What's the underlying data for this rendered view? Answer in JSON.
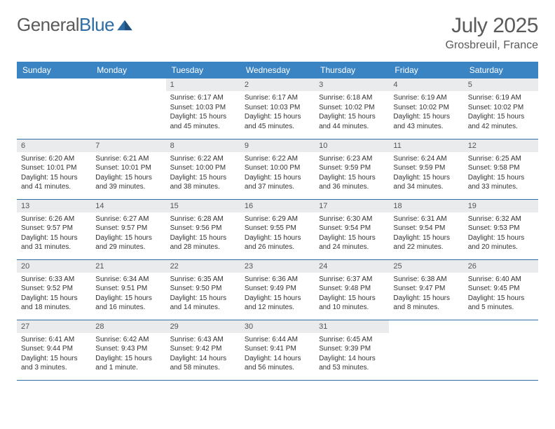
{
  "brand": {
    "part1": "General",
    "part2": "Blue"
  },
  "title": "July 2025",
  "location": "Grosbreuil, France",
  "colors": {
    "header_bg": "#3b84c4",
    "header_text": "#ffffff",
    "daynum_bg": "#e9ebed",
    "border": "#2e6ca4",
    "text": "#333333",
    "muted": "#5a5a5a",
    "logo_blue": "#2e6ca4"
  },
  "weekdays": [
    "Sunday",
    "Monday",
    "Tuesday",
    "Wednesday",
    "Thursday",
    "Friday",
    "Saturday"
  ],
  "weeks": [
    [
      null,
      null,
      {
        "d": "1",
        "sr": "6:17 AM",
        "ss": "10:03 PM",
        "dl": "15 hours and 45 minutes."
      },
      {
        "d": "2",
        "sr": "6:17 AM",
        "ss": "10:03 PM",
        "dl": "15 hours and 45 minutes."
      },
      {
        "d": "3",
        "sr": "6:18 AM",
        "ss": "10:02 PM",
        "dl": "15 hours and 44 minutes."
      },
      {
        "d": "4",
        "sr": "6:19 AM",
        "ss": "10:02 PM",
        "dl": "15 hours and 43 minutes."
      },
      {
        "d": "5",
        "sr": "6:19 AM",
        "ss": "10:02 PM",
        "dl": "15 hours and 42 minutes."
      }
    ],
    [
      {
        "d": "6",
        "sr": "6:20 AM",
        "ss": "10:01 PM",
        "dl": "15 hours and 41 minutes."
      },
      {
        "d": "7",
        "sr": "6:21 AM",
        "ss": "10:01 PM",
        "dl": "15 hours and 39 minutes."
      },
      {
        "d": "8",
        "sr": "6:22 AM",
        "ss": "10:00 PM",
        "dl": "15 hours and 38 minutes."
      },
      {
        "d": "9",
        "sr": "6:22 AM",
        "ss": "10:00 PM",
        "dl": "15 hours and 37 minutes."
      },
      {
        "d": "10",
        "sr": "6:23 AM",
        "ss": "9:59 PM",
        "dl": "15 hours and 36 minutes."
      },
      {
        "d": "11",
        "sr": "6:24 AM",
        "ss": "9:59 PM",
        "dl": "15 hours and 34 minutes."
      },
      {
        "d": "12",
        "sr": "6:25 AM",
        "ss": "9:58 PM",
        "dl": "15 hours and 33 minutes."
      }
    ],
    [
      {
        "d": "13",
        "sr": "6:26 AM",
        "ss": "9:57 PM",
        "dl": "15 hours and 31 minutes."
      },
      {
        "d": "14",
        "sr": "6:27 AM",
        "ss": "9:57 PM",
        "dl": "15 hours and 29 minutes."
      },
      {
        "d": "15",
        "sr": "6:28 AM",
        "ss": "9:56 PM",
        "dl": "15 hours and 28 minutes."
      },
      {
        "d": "16",
        "sr": "6:29 AM",
        "ss": "9:55 PM",
        "dl": "15 hours and 26 minutes."
      },
      {
        "d": "17",
        "sr": "6:30 AM",
        "ss": "9:54 PM",
        "dl": "15 hours and 24 minutes."
      },
      {
        "d": "18",
        "sr": "6:31 AM",
        "ss": "9:54 PM",
        "dl": "15 hours and 22 minutes."
      },
      {
        "d": "19",
        "sr": "6:32 AM",
        "ss": "9:53 PM",
        "dl": "15 hours and 20 minutes."
      }
    ],
    [
      {
        "d": "20",
        "sr": "6:33 AM",
        "ss": "9:52 PM",
        "dl": "15 hours and 18 minutes."
      },
      {
        "d": "21",
        "sr": "6:34 AM",
        "ss": "9:51 PM",
        "dl": "15 hours and 16 minutes."
      },
      {
        "d": "22",
        "sr": "6:35 AM",
        "ss": "9:50 PM",
        "dl": "15 hours and 14 minutes."
      },
      {
        "d": "23",
        "sr": "6:36 AM",
        "ss": "9:49 PM",
        "dl": "15 hours and 12 minutes."
      },
      {
        "d": "24",
        "sr": "6:37 AM",
        "ss": "9:48 PM",
        "dl": "15 hours and 10 minutes."
      },
      {
        "d": "25",
        "sr": "6:38 AM",
        "ss": "9:47 PM",
        "dl": "15 hours and 8 minutes."
      },
      {
        "d": "26",
        "sr": "6:40 AM",
        "ss": "9:45 PM",
        "dl": "15 hours and 5 minutes."
      }
    ],
    [
      {
        "d": "27",
        "sr": "6:41 AM",
        "ss": "9:44 PM",
        "dl": "15 hours and 3 minutes."
      },
      {
        "d": "28",
        "sr": "6:42 AM",
        "ss": "9:43 PM",
        "dl": "15 hours and 1 minute."
      },
      {
        "d": "29",
        "sr": "6:43 AM",
        "ss": "9:42 PM",
        "dl": "14 hours and 58 minutes."
      },
      {
        "d": "30",
        "sr": "6:44 AM",
        "ss": "9:41 PM",
        "dl": "14 hours and 56 minutes."
      },
      {
        "d": "31",
        "sr": "6:45 AM",
        "ss": "9:39 PM",
        "dl": "14 hours and 53 minutes."
      },
      null,
      null
    ]
  ],
  "labels": {
    "sunrise": "Sunrise:",
    "sunset": "Sunset:",
    "daylight": "Daylight:"
  }
}
